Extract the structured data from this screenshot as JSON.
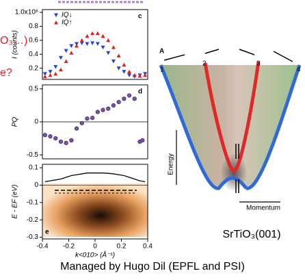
{
  "chart_data": [
    {
      "type": "scatter",
      "panel": "c",
      "ylabel": "I (counts)",
      "xlim": [
        -0.4,
        0.4
      ],
      "ylim": [
        0.04,
        1.04
      ],
      "yticks": [
        0.2,
        0.4,
        0.6,
        {
          "value": 0.8,
          "label": "0.8"
        },
        {
          "value": 1.0,
          "label": "1.0x10⁶"
        }
      ],
      "x": [
        -0.38,
        -0.34,
        -0.3,
        -0.26,
        -0.22,
        -0.18,
        -0.14,
        -0.1,
        -0.06,
        -0.02,
        0.02,
        0.06,
        0.1,
        0.14,
        0.18,
        0.22,
        0.26,
        0.3,
        0.34,
        0.38
      ],
      "series": [
        {
          "name": "IQ↓",
          "color": "#1f3fe0",
          "marker": "down",
          "values": [
            0.12,
            0.15,
            0.22,
            0.35,
            0.45,
            0.52,
            0.55,
            0.56,
            0.55,
            0.56,
            0.55,
            0.5,
            0.42,
            0.3,
            0.2,
            0.15,
            0.1,
            0.08,
            0.1,
            0.12
          ]
        },
        {
          "name": "IQ↑",
          "color": "#e01f1f",
          "marker": "up",
          "values": [
            0.08,
            0.1,
            0.12,
            0.18,
            0.3,
            0.42,
            0.52,
            0.6,
            0.66,
            0.7,
            0.7,
            0.66,
            0.6,
            0.5,
            0.38,
            0.25,
            0.15,
            0.1,
            0.09,
            0.1
          ]
        }
      ]
    },
    {
      "type": "scatter",
      "panel": "d",
      "ylabel": "PQ",
      "xlim": [
        -0.4,
        0.4
      ],
      "ylim": [
        -0.56,
        0.56
      ],
      "yticks": [
        -0.5,
        0.0,
        0.5
      ],
      "x": [
        -0.38,
        -0.34,
        -0.3,
        -0.26,
        -0.22,
        -0.18,
        -0.14,
        -0.1,
        -0.06,
        -0.02,
        0.02,
        0.06,
        0.1,
        0.14,
        0.18,
        0.22,
        0.26,
        0.3,
        0.34,
        0.36
      ],
      "series": [
        {
          "name": "PQ",
          "color": "#7b4fb0",
          "marker": "circle",
          "values": [
            -0.2,
            -0.22,
            -0.25,
            -0.3,
            -0.32,
            -0.28,
            -0.1,
            -0.02,
            0.05,
            0.06,
            0.15,
            0.18,
            0.2,
            0.25,
            0.3,
            0.35,
            0.4,
            0.35,
            -0.3,
            -0.28
          ]
        }
      ]
    },
    {
      "type": "line",
      "panel": "e",
      "ylabel": "E - EF (eV)",
      "xlabel": "k<010> (Å⁻¹)",
      "xlim": [
        -0.4,
        0.4
      ],
      "ylim": [
        -0.31,
        0.12
      ],
      "xticks": [
        -0.4,
        -0.2,
        0.0,
        0.2,
        0.4
      ],
      "yticks": [
        -0.3,
        -0.2,
        -0.1,
        0.0,
        0.1
      ],
      "x": [
        -0.38,
        -0.34,
        -0.3,
        -0.26,
        -0.22,
        -0.18,
        -0.14,
        -0.1,
        -0.06,
        -0.02,
        0.02,
        0.06,
        0.1,
        0.14,
        0.18,
        0.22,
        0.26,
        0.3,
        0.34,
        0.38
      ],
      "series": [
        {
          "name": null,
          "color": "#000000",
          "values": [
            0.02,
            0.025,
            0.03,
            0.035,
            0.045,
            0.055,
            0.06,
            0.065,
            0.07,
            0.07,
            0.07,
            0.07,
            0.068,
            0.065,
            0.06,
            0.055,
            0.045,
            0.035,
            0.025,
            0.02
          ]
        }
      ]
    }
  ],
  "diagram": {
    "arrow_label": "A",
    "bands": [
      "1",
      "2",
      "3",
      "4"
    ],
    "energy": "Energy",
    "momentum": "Momentum",
    "material": "SrTiO₃(001)"
  },
  "fragments": [
    "O₃…)",
    "e?"
  ],
  "caption": "Managed by Hugo Dil (EPFL and PSI)"
}
